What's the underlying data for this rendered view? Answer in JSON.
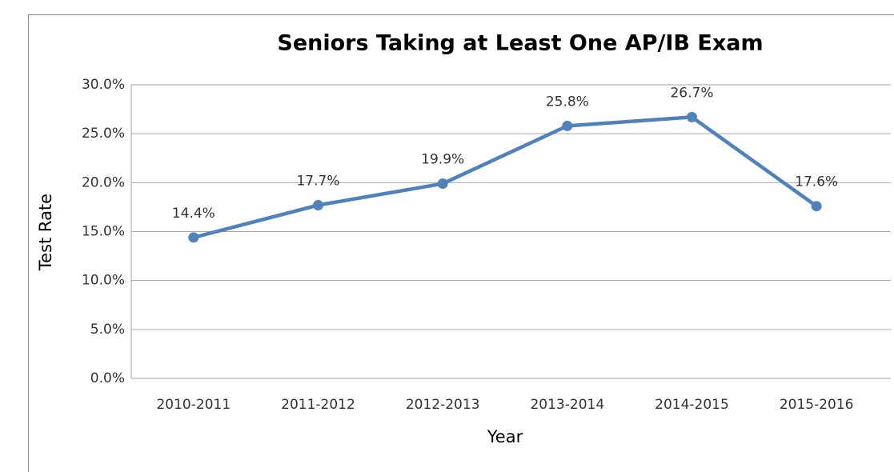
{
  "chart_data": {
    "type": "line",
    "title": "Seniors Taking at Least One AP/IB Exam",
    "x_label": "Year",
    "y_label": "Test Rate",
    "categories": [
      "2010-2011",
      "2011-2012",
      "2012-2013",
      "2013-2014",
      "2014-2015",
      "2015-2016"
    ],
    "series": [
      {
        "name": "Test Rate",
        "color": "#4f81bd",
        "values": [
          14.4,
          17.7,
          19.9,
          25.8,
          26.7,
          17.6
        ],
        "value_labels": [
          "14.4%",
          "17.7%",
          "19.9%",
          "25.8%",
          "26.7%",
          "17.6%"
        ]
      }
    ],
    "ylim": [
      0,
      30
    ],
    "yticks": [
      {
        "value": 0,
        "label": "0.0%"
      },
      {
        "value": 5,
        "label": "5.0%"
      },
      {
        "value": 10,
        "label": "10.0%"
      },
      {
        "value": 15,
        "label": "15.0%"
      },
      {
        "value": 20,
        "label": "20.0%"
      },
      {
        "value": 25,
        "label": "25.0%"
      },
      {
        "value": 30,
        "label": "30.0%"
      }
    ],
    "grid": true
  }
}
